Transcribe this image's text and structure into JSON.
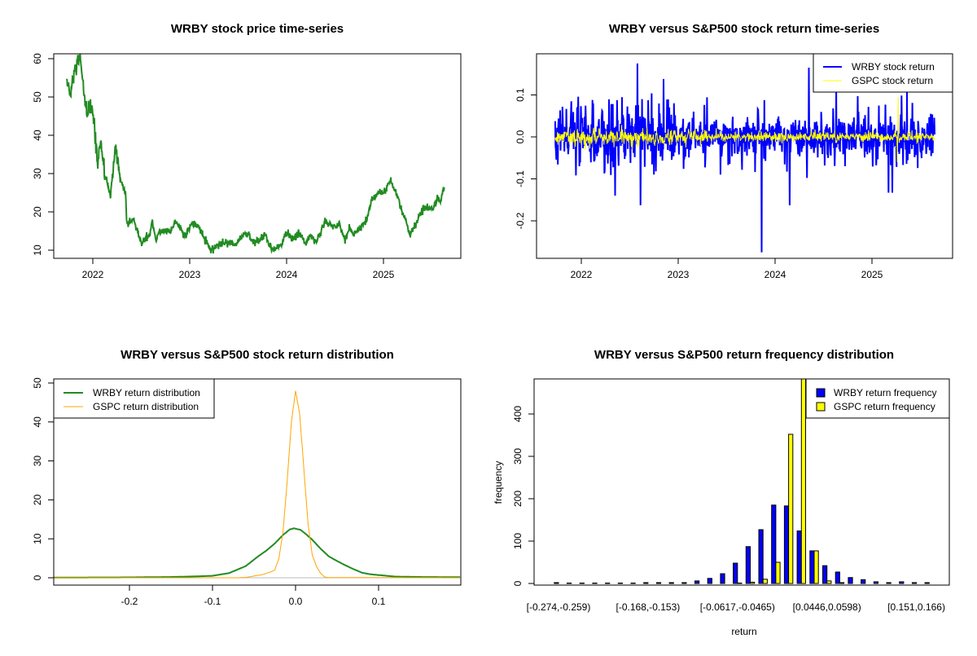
{
  "chart_data": [
    {
      "type": "line",
      "title": "WRBY stock price time-series",
      "x_ticks": [
        "2022",
        "2023",
        "2024",
        "2025"
      ],
      "y_ticks": [
        "10",
        "20",
        "30",
        "40",
        "50",
        "60"
      ],
      "ylim": [
        9,
        61.5
      ],
      "grid": false,
      "series": [
        {
          "color": "#228B22",
          "points": [
            [
              2021.73,
              54.5
            ],
            [
              2021.77,
              50
            ],
            [
              2021.81,
              57
            ],
            [
              2021.87,
              59.5
            ],
            [
              2021.9,
              53
            ],
            [
              2021.94,
              45
            ],
            [
              2021.97,
              48
            ],
            [
              2022.0,
              46
            ],
            [
              2022.05,
              33
            ],
            [
              2022.08,
              38
            ],
            [
              2022.13,
              29
            ],
            [
              2022.18,
              24
            ],
            [
              2022.23,
              36
            ],
            [
              2022.27,
              30
            ],
            [
              2022.34,
              24
            ],
            [
              2022.35,
              17
            ],
            [
              2022.42,
              18
            ],
            [
              2022.5,
              12
            ],
            [
              2022.59,
              14
            ],
            [
              2022.61,
              18
            ],
            [
              2022.65,
              13
            ],
            [
              2022.7,
              15
            ],
            [
              2022.81,
              15
            ],
            [
              2022.85,
              18
            ],
            [
              2022.95,
              13.5
            ],
            [
              2023.03,
              17
            ],
            [
              2023.1,
              16
            ],
            [
              2023.21,
              10
            ],
            [
              2023.36,
              12
            ],
            [
              2023.47,
              11.5
            ],
            [
              2023.55,
              14
            ],
            [
              2023.61,
              14.5
            ],
            [
              2023.64,
              12
            ],
            [
              2023.73,
              12.5
            ],
            [
              2023.78,
              14
            ],
            [
              2023.85,
              10
            ],
            [
              2023.95,
              11.5
            ],
            [
              2023.99,
              14.5
            ],
            [
              2024.08,
              13
            ],
            [
              2024.15,
              14.5
            ],
            [
              2024.19,
              11.5
            ],
            [
              2024.24,
              13.5
            ],
            [
              2024.31,
              12
            ],
            [
              2024.4,
              18
            ],
            [
              2024.47,
              16
            ],
            [
              2024.54,
              17
            ],
            [
              2024.6,
              13
            ],
            [
              2024.65,
              15.5
            ],
            [
              2024.69,
              14
            ],
            [
              2024.76,
              16
            ],
            [
              2024.83,
              18
            ],
            [
              2024.88,
              23
            ],
            [
              2024.95,
              25
            ],
            [
              2025.02,
              25.5
            ],
            [
              2025.07,
              28
            ],
            [
              2025.15,
              24
            ],
            [
              2025.19,
              20
            ],
            [
              2025.23,
              18
            ],
            [
              2025.27,
              14
            ],
            [
              2025.34,
              17
            ],
            [
              2025.41,
              21
            ],
            [
              2025.51,
              21
            ],
            [
              2025.56,
              23.5
            ],
            [
              2025.59,
              22.5
            ],
            [
              2025.62,
              26.5
            ],
            [
              2025.63,
              26
            ]
          ]
        }
      ]
    },
    {
      "type": "line",
      "title": "WRBY versus S&P500 stock return time-series",
      "x_ticks": [
        "2022",
        "2023",
        "2024",
        "2025"
      ],
      "y_ticks": [
        "-0.2",
        "-0.1",
        "0.0",
        "0.1"
      ],
      "y_tick_values": [
        -0.2,
        -0.1,
        0.0,
        0.1
      ],
      "ylim": [
        -0.288,
        0.198
      ],
      "xlim": [
        2021.73,
        2025.65
      ],
      "legend": "top-right",
      "grid": false,
      "series": [
        {
          "name": "WRBY stock return",
          "color": "#0000FF",
          "typical_range": [
            -0.1,
            0.1
          ],
          "extremes": [
            [
              2022.35,
              -0.14
            ],
            [
              2022.58,
              0.175
            ],
            [
              2022.61,
              -0.163
            ],
            [
              2022.85,
              0.138
            ],
            [
              2023.86,
              -0.275
            ],
            [
              2024.15,
              -0.163
            ],
            [
              2024.35,
              0.165
            ],
            [
              2024.63,
              0.11
            ],
            [
              2025.17,
              -0.133
            ],
            [
              2025.21,
              -0.133
            ],
            [
              2025.36,
              0.11
            ]
          ]
        },
        {
          "name": "GSPC stock return",
          "color": "#FFFF00",
          "typical_range": [
            -0.03,
            0.03
          ],
          "extremes": [
            [
              2025.26,
              -0.06
            ],
            [
              2025.27,
              0.095
            ]
          ]
        }
      ]
    },
    {
      "type": "line",
      "title": "WRBY versus S&P500 stock return distribution",
      "x_ticks": [
        "-0.2",
        "-0.1",
        "0.0",
        "0.1"
      ],
      "x_tick_values": [
        -0.2,
        -0.1,
        0.0,
        0.1
      ],
      "y_ticks": [
        "0",
        "10",
        "20",
        "30",
        "40",
        "50"
      ],
      "xlim": [
        -0.292,
        0.199
      ],
      "ylim": [
        -1.9,
        50.8
      ],
      "legend": "top-left",
      "series": [
        {
          "name": "WRBY return distribution",
          "color": "#228B22",
          "points": [
            [
              -0.292,
              0.05
            ],
            [
              -0.2,
              0.1
            ],
            [
              -0.15,
              0.2
            ],
            [
              -0.12,
              0.35
            ],
            [
              -0.1,
              0.5
            ],
            [
              -0.08,
              1.2
            ],
            [
              -0.06,
              3
            ],
            [
              -0.045,
              5.5
            ],
            [
              -0.035,
              7
            ],
            [
              -0.025,
              8.8
            ],
            [
              -0.015,
              11
            ],
            [
              -0.007,
              12.4
            ],
            [
              -0.002,
              12.7
            ],
            [
              0.006,
              12.3
            ],
            [
              0.012,
              11.3
            ],
            [
              0.02,
              9.8
            ],
            [
              0.03,
              7.5
            ],
            [
              0.04,
              5.5
            ],
            [
              0.05,
              4.3
            ],
            [
              0.06,
              3.2
            ],
            [
              0.07,
              2.2
            ],
            [
              0.08,
              1.3
            ],
            [
              0.09,
              0.9
            ],
            [
              0.1,
              0.7
            ],
            [
              0.12,
              0.3
            ],
            [
              0.15,
              0.2
            ],
            [
              0.199,
              0.15
            ]
          ]
        },
        {
          "name": "GSPC return distribution",
          "color": "#FFA500",
          "points": [
            [
              -0.292,
              0
            ],
            [
              -0.07,
              0
            ],
            [
              -0.06,
              0.1
            ],
            [
              -0.04,
              0.8
            ],
            [
              -0.03,
              1.5
            ],
            [
              -0.025,
              2
            ],
            [
              -0.02,
              5
            ],
            [
              -0.015,
              12
            ],
            [
              -0.01,
              25
            ],
            [
              -0.005,
              40
            ],
            [
              0,
              48
            ],
            [
              0.005,
              42
            ],
            [
              0.01,
              28
            ],
            [
              0.015,
              14
            ],
            [
              0.02,
              6
            ],
            [
              0.025,
              3
            ],
            [
              0.03,
              1.2
            ],
            [
              0.035,
              0.2
            ],
            [
              0.04,
              0.05
            ],
            [
              0.06,
              0.05
            ],
            [
              0.09,
              0.05
            ],
            [
              0.199,
              0
            ]
          ]
        }
      ]
    },
    {
      "type": "bar",
      "title": "WRBY versus S&P500 return frequency distribution",
      "xlabel": "return",
      "ylabel": "frequency",
      "x_tick_labels": [
        "[-0.274,-0.259)",
        "[-0.168,-0.153)",
        "[-0.0617,-0.0465)",
        "[0.0446,0.0598)",
        "[0.151,0.166)"
      ],
      "x_tick_bins": [
        1,
        8,
        15,
        22,
        29
      ],
      "y_ticks": [
        "0",
        "100",
        "200",
        "300",
        "400"
      ],
      "ylim": [
        0,
        483
      ],
      "legend": "top-right",
      "series": [
        {
          "name": "WRBY return frequency",
          "color": "#0000FF",
          "values": [
            2,
            1,
            1,
            1,
            1,
            1,
            1,
            2,
            2,
            2,
            2,
            6,
            12,
            23,
            48,
            87,
            127,
            185,
            183,
            124,
            77,
            42,
            27,
            14,
            9,
            4,
            2,
            4,
            2,
            2
          ]
        },
        {
          "name": "GSPC return frequency",
          "color": "#FFFF00",
          "values": [
            0,
            0,
            0,
            0,
            0,
            0,
            0,
            0,
            0,
            0,
            0,
            0,
            0,
            0,
            1,
            3,
            10,
            50,
            352,
            520,
            77,
            6,
            2,
            0,
            0,
            0,
            0,
            0,
            0,
            0
          ]
        }
      ]
    }
  ]
}
